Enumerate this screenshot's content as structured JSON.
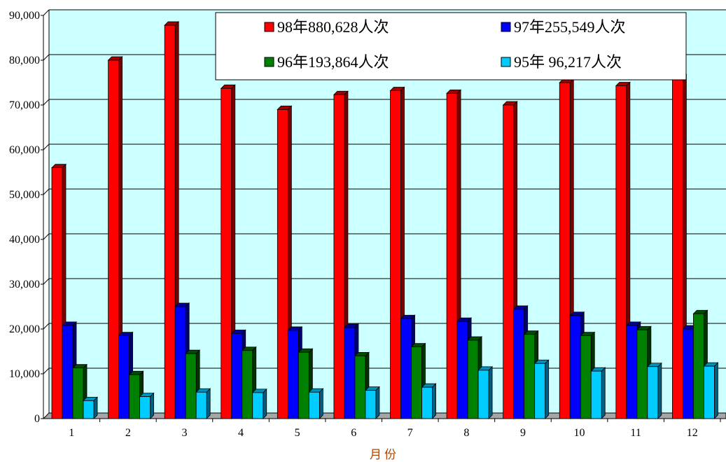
{
  "chart_data": {
    "type": "bar",
    "title": "",
    "xlabel": "月份",
    "ylabel": "",
    "categories": [
      "1",
      "2",
      "3",
      "4",
      "5",
      "6",
      "7",
      "8",
      "9",
      "10",
      "11",
      "12"
    ],
    "ylim": [
      0,
      90000
    ],
    "yticks": [
      0,
      10000,
      20000,
      30000,
      40000,
      50000,
      60000,
      70000,
      80000,
      90000
    ],
    "ytick_labels": [
      "0",
      "10,000",
      "20,000",
      "30,000",
      "40,000",
      "50,000",
      "60,000",
      "70,000",
      "80,000",
      "90,000"
    ],
    "grid": true,
    "legend_position": "top-right",
    "series": [
      {
        "name": "98年880,628人次",
        "color": "#ff0000",
        "side": "#7a0000",
        "top": "#a00000",
        "values": [
          56000,
          80000,
          87800,
          73700,
          69000,
          72300,
          73200,
          72600,
          70000,
          75000,
          74300,
          76000
        ]
      },
      {
        "name": "97年255,549人次",
        "color": "#0000ff",
        "side": "#00006e",
        "top": "#000096",
        "values": [
          20800,
          18500,
          25000,
          19000,
          19700,
          20300,
          22300,
          21700,
          24400,
          23000,
          20800,
          20000
        ]
      },
      {
        "name": "96年193,864人次",
        "color": "#008000",
        "side": "#003300",
        "top": "#004d00",
        "values": [
          11300,
          9800,
          14500,
          15200,
          14800,
          14000,
          16000,
          17500,
          18800,
          18500,
          19800,
          23400
        ]
      },
      {
        "name": "95年 96,217人次",
        "color": "#00ccff",
        "side": "#005f80",
        "top": "#0090b8",
        "values": [
          4000,
          4900,
          5900,
          5800,
          5900,
          6300,
          7000,
          10800,
          12300,
          10600,
          11600,
          11700
        ]
      }
    ],
    "plot_background": "#ccffff",
    "floor_color": "#a6a6a6"
  }
}
